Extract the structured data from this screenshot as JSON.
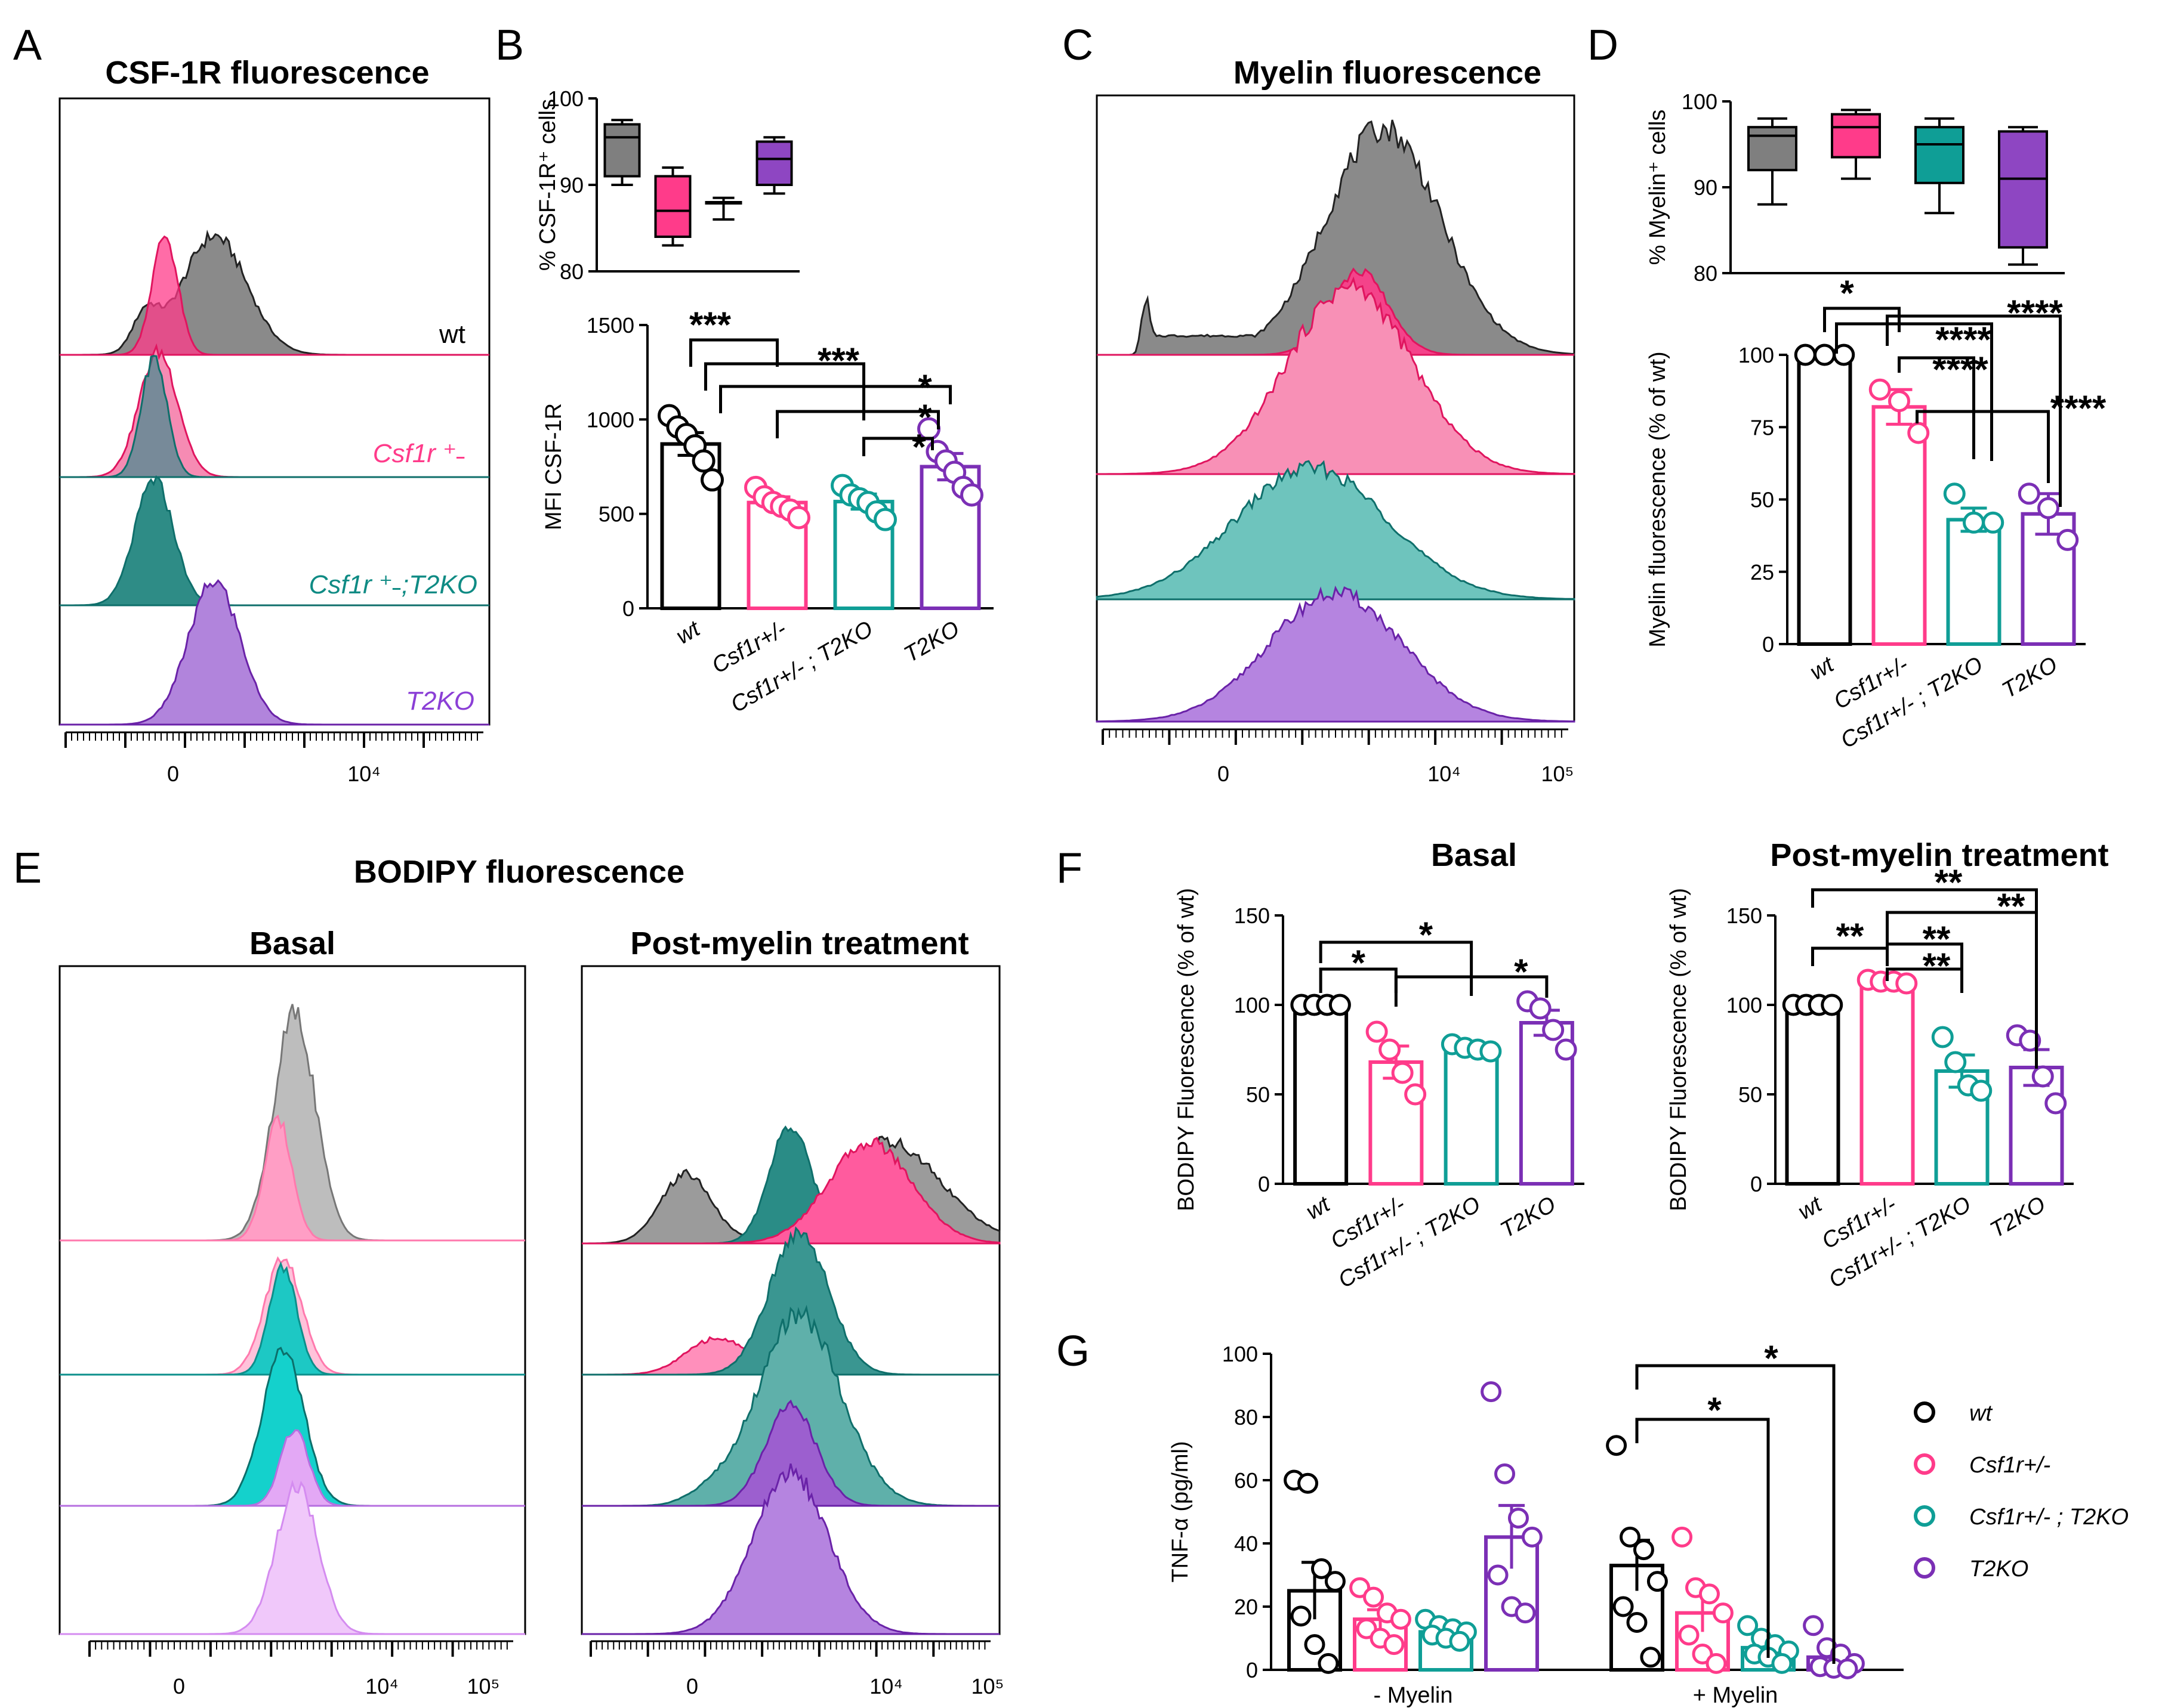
{
  "panels": {
    "A": "A",
    "B": "B",
    "C": "C",
    "D": "D",
    "E": "E",
    "F": "F",
    "G": "G"
  },
  "titles": {
    "A": "CSF-1R fluorescence",
    "C": "Myelin fluorescence",
    "E": "BODIPY fluorescence",
    "E_basal": "Basal",
    "E_post": "Post-myelin treatment",
    "F_basal": "Basal",
    "F_post": "Post-myelin treatment"
  },
  "colors": {
    "wt": "#000000",
    "het": "#ff3b8a",
    "double": "#0f9e96",
    "t2ko": "#7b2fb5"
  },
  "hist_labels": {
    "wt": "wt",
    "het": "Csf1r ⁺˗",
    "double": "Csf1r ⁺˗;T2KO",
    "t2ko": "T2KO"
  },
  "hist_axis": {
    "zero": "0",
    "e4": "10⁴",
    "e5": "10⁵"
  },
  "groups": [
    "wt",
    "Csf1r+/-",
    "Csf1r+/- ; T2KO",
    "T2KO"
  ],
  "legend": [
    "wt",
    "Csf1r+/-",
    "Csf1r+/- ; T2KO",
    "T2KO"
  ],
  "sig": {
    "s1": "*",
    "s2": "**",
    "s3": "***",
    "s4": "****"
  },
  "chart_data": [
    {
      "id": "B_top",
      "type": "box",
      "ylabel": "% CSF-1R⁺ cells",
      "ylim": [
        80,
        100
      ],
      "yticks": [
        "80",
        "90",
        "100"
      ],
      "categories": [
        "wt",
        "Csf1r+/-",
        "Csf1r+/- ; T2KO",
        "T2KO"
      ],
      "boxes": [
        {
          "min": 90,
          "q1": 91,
          "med": 95.5,
          "q3": 97,
          "max": 97.5
        },
        {
          "min": 83,
          "q1": 84,
          "med": 87,
          "q3": 91,
          "max": 92
        },
        {
          "min": 86,
          "q1": 88,
          "med": 88,
          "q3": 88,
          "max": 88.5
        },
        {
          "min": 89,
          "q1": 90,
          "med": 93,
          "q3": 95,
          "max": 95.5
        }
      ]
    },
    {
      "id": "B_bottom",
      "type": "bar",
      "ylabel": "MFI CSF-1R",
      "ylim": [
        0,
        1500
      ],
      "yticks": [
        "0",
        "500",
        "1000",
        "1500"
      ],
      "categories": [
        "wt",
        "Csf1r+/-",
        "Csf1r+/- ; T2KO",
        "T2KO"
      ],
      "values": [
        870,
        560,
        565,
        750
      ],
      "sem": [
        60,
        30,
        40,
        70
      ],
      "points": [
        [
          1020,
          960,
          920,
          860,
          780,
          680
        ],
        [
          640,
          590,
          560,
          540,
          520,
          480
        ],
        [
          650,
          600,
          580,
          560,
          510,
          470
        ],
        [
          950,
          830,
          780,
          720,
          640,
          600
        ]
      ]
    },
    {
      "id": "D_top",
      "type": "box",
      "ylabel": "% Myelin⁺ cells",
      "ylim": [
        80,
        100
      ],
      "yticks": [
        "80",
        "90",
        "100"
      ],
      "categories": [
        "wt",
        "Csf1r+/-",
        "Csf1r+/- ; T2KO",
        "T2KO"
      ],
      "boxes": [
        {
          "min": 88,
          "q1": 92,
          "med": 96,
          "q3": 97,
          "max": 98
        },
        {
          "min": 91,
          "q1": 93.5,
          "med": 97,
          "q3": 98.5,
          "max": 99
        },
        {
          "min": 87,
          "q1": 90.5,
          "med": 95,
          "q3": 97,
          "max": 98
        },
        {
          "min": 81,
          "q1": 83,
          "med": 91,
          "q3": 96.5,
          "max": 97
        }
      ]
    },
    {
      "id": "D_bottom",
      "type": "bar",
      "ylabel": "Myelin fluorescence (% of wt)",
      "ylim": [
        0,
        100
      ],
      "yticks": [
        "0",
        "25",
        "50",
        "75",
        "100"
      ],
      "categories": [
        "wt",
        "Csf1r+/-",
        "Csf1r+/- ; T2KO",
        "T2KO"
      ],
      "values": [
        100,
        82,
        43,
        45
      ],
      "sem": [
        0,
        6,
        4,
        7
      ],
      "points": [
        [
          100,
          100,
          100
        ],
        [
          88,
          84,
          73
        ],
        [
          52,
          42,
          42
        ],
        [
          52,
          47,
          36
        ]
      ]
    },
    {
      "id": "F_basal",
      "type": "bar",
      "ylabel": "BODIPY Fluorescence  (% of wt)",
      "ylim": [
        0,
        150
      ],
      "yticks": [
        "0",
        "50",
        "100",
        "150"
      ],
      "categories": [
        "wt",
        "Csf1r+/-",
        "Csf1r+/- ; T2KO",
        "T2KO"
      ],
      "values": [
        100,
        68,
        75,
        90
      ],
      "sem": [
        0,
        9,
        3,
        7
      ],
      "points": [
        [
          100,
          100,
          100,
          100
        ],
        [
          85,
          75,
          62,
          50
        ],
        [
          78,
          76,
          75,
          74
        ],
        [
          102,
          98,
          86,
          75
        ]
      ]
    },
    {
      "id": "F_post",
      "type": "bar",
      "ylabel": "BODIPY Fluorescence  (% of wt)",
      "ylim": [
        0,
        150
      ],
      "yticks": [
        "0",
        "50",
        "100",
        "150"
      ],
      "categories": [
        "wt",
        "Csf1r+/-",
        "Csf1r+/- ; T2KO",
        "T2KO"
      ],
      "values": [
        100,
        113,
        63,
        65
      ],
      "sem": [
        0,
        1,
        9,
        10
      ],
      "points": [
        [
          100,
          100,
          100,
          100
        ],
        [
          114,
          113,
          113,
          112
        ],
        [
          82,
          68,
          55,
          52
        ],
        [
          83,
          80,
          60,
          45
        ]
      ]
    },
    {
      "id": "G",
      "type": "grouped_bar",
      "ylabel": "TNF-α (pg/ml)",
      "ylim": [
        0,
        100
      ],
      "yticks": [
        "0",
        "20",
        "40",
        "60",
        "80",
        "100"
      ],
      "groups": [
        "- Myelin",
        "+ Myelin"
      ],
      "series": [
        {
          "name": "wt",
          "values": [
            25,
            33
          ],
          "sem": [
            9,
            8
          ],
          "points": [
            [
              60,
              59,
              32,
              28,
              17,
              8,
              2
            ],
            [
              71,
              42,
              38,
              28,
              20,
              15,
              4
            ]
          ]
        },
        {
          "name": "Csf1r+/-",
          "values": [
            16,
            18
          ],
          "sem": [
            3,
            6
          ],
          "points": [
            [
              26,
              23,
              18,
              16,
              13,
              10,
              8
            ],
            [
              42,
              26,
              24,
              18,
              11,
              5,
              2
            ]
          ]
        },
        {
          "name": "Csf1r+/- ; T2KO",
          "values": [
            12,
            7
          ],
          "sem": [
            2,
            2
          ],
          "points": [
            [
              16,
              14,
              13,
              12,
              11,
              10,
              9
            ],
            [
              14,
              10,
              8,
              6,
              5,
              4,
              2
            ]
          ]
        },
        {
          "name": "T2KO",
          "values": [
            42,
            4
          ],
          "sem": [
            10,
            2
          ],
          "points": [
            [
              88,
              62,
              48,
              42,
              30,
              20,
              18
            ],
            [
              14,
              7,
              5,
              2,
              1,
              0.5,
              0.3
            ]
          ]
        }
      ]
    }
  ]
}
